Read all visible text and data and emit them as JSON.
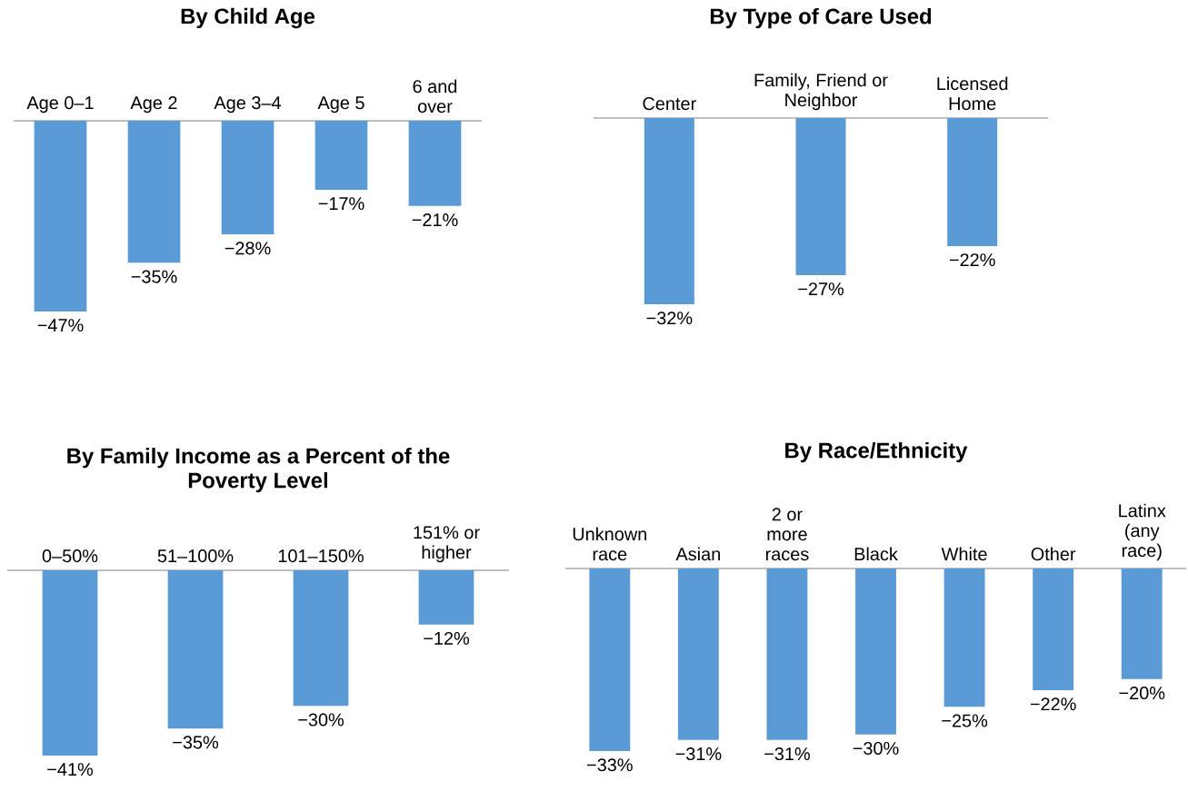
{
  "chart_data": [
    {
      "type": "bar",
      "title": "By Child Age",
      "categories": [
        "Age 0–1",
        "Age 2",
        "Age 3–4",
        "Age 5",
        "6 and over"
      ],
      "values": [
        -47,
        -35,
        -28,
        -17,
        -21
      ],
      "value_labels": [
        "−47%",
        "−35%",
        "−28%",
        "−17%",
        "−21%"
      ],
      "color": "#5b9bd5"
    },
    {
      "type": "bar",
      "title": "By Type of Care Used",
      "categories": [
        "Center",
        "Family, Friend or Neighbor",
        "Licensed Home"
      ],
      "values": [
        -32,
        -27,
        -22
      ],
      "value_labels": [
        "−32%",
        "−27%",
        "−22%"
      ],
      "color": "#5b9bd5"
    },
    {
      "type": "bar",
      "title": "By Family Income as a Percent of the Poverty Level",
      "categories": [
        "0–50%",
        "51–100%",
        "101–150%",
        "151% or higher"
      ],
      "values": [
        -41,
        -35,
        -30,
        -12
      ],
      "value_labels": [
        "−41%",
        "−35%",
        "−30%",
        "−12%"
      ],
      "color": "#5b9bd5"
    },
    {
      "type": "bar",
      "title": "By Race/Ethnicity",
      "categories": [
        "Unknown race",
        "Asian",
        "2 or more races",
        "Black",
        "White",
        "Other",
        "Latinx (any race)"
      ],
      "values": [
        -33,
        -31,
        -31,
        -30,
        -25,
        -22,
        -20
      ],
      "value_labels": [
        "−33%",
        "−31%",
        "−31%",
        "−30%",
        "−25%",
        "−22%",
        "−20%"
      ],
      "color": "#5b9bd5"
    }
  ]
}
